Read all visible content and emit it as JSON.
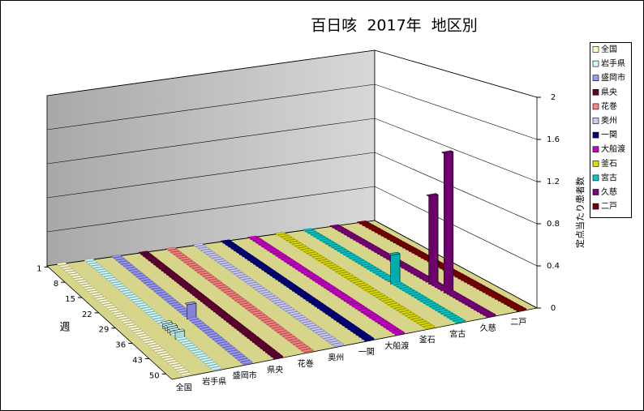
{
  "chart_data": {
    "type": "bar3d",
    "title": "百日咳  2017年  地区別",
    "xlabel": "週",
    "ylabel": "定点当たり患者数",
    "x": [
      1,
      2,
      3,
      4,
      5,
      6,
      7,
      8,
      9,
      10,
      11,
      12,
      13,
      14,
      15,
      16,
      17,
      18,
      19,
      20,
      21,
      22,
      23,
      24,
      25,
      26,
      27,
      28,
      29,
      30,
      31,
      32,
      33,
      34,
      35,
      36,
      37,
      38,
      39,
      40,
      41,
      42,
      43,
      44,
      45,
      46,
      47,
      48,
      49,
      50,
      51,
      52
    ],
    "xticks": [
      1,
      8,
      15,
      22,
      29,
      36,
      43,
      50
    ],
    "ylim": [
      0,
      2
    ],
    "yticks": [
      0,
      0.4,
      0.8,
      1.2,
      1.6,
      2
    ],
    "grid": true,
    "legend": "right",
    "series": [
      {
        "name": "全国",
        "color": "#FFFFCC",
        "values": [
          0,
          0,
          0,
          0,
          0,
          0,
          0,
          0,
          0,
          0,
          0,
          0,
          0,
          0,
          0,
          0,
          0,
          0,
          0,
          0,
          0,
          0,
          0,
          0,
          0,
          0,
          0,
          0,
          0,
          0,
          0,
          0,
          0,
          0,
          0,
          0,
          0,
          0,
          0,
          0,
          0,
          0,
          0,
          0,
          0,
          0,
          0,
          0,
          0,
          0,
          0,
          0
        ]
      },
      {
        "name": "岩手県",
        "color": "#CCFFFF",
        "values": [
          0,
          0,
          0,
          0,
          0,
          0,
          0,
          0,
          0,
          0,
          0,
          0,
          0,
          0,
          0,
          0,
          0,
          0,
          0,
          0,
          0,
          0,
          0,
          0,
          0,
          0,
          0,
          0,
          0,
          0,
          0,
          0.05,
          0.03,
          0.06,
          0.04,
          0,
          0.07,
          0,
          0,
          0,
          0,
          0,
          0,
          0,
          0,
          0,
          0,
          0,
          0,
          0,
          0,
          0
        ]
      },
      {
        "name": "盛岡市",
        "color": "#9999FF",
        "values": [
          0,
          0,
          0,
          0,
          0,
          0,
          0,
          0,
          0,
          0,
          0,
          0,
          0,
          0,
          0,
          0,
          0,
          0,
          0,
          0,
          0,
          0,
          0,
          0,
          0,
          0,
          0,
          0,
          0,
          0.15,
          0,
          0,
          0,
          0,
          0,
          0,
          0,
          0,
          0,
          0,
          0,
          0,
          0,
          0,
          0,
          0,
          0,
          0,
          0,
          0,
          0,
          0
        ]
      },
      {
        "name": "県央",
        "color": "#660033",
        "values": [
          0,
          0,
          0,
          0,
          0,
          0,
          0,
          0,
          0,
          0,
          0,
          0,
          0,
          0,
          0,
          0,
          0,
          0,
          0,
          0,
          0,
          0,
          0,
          0,
          0,
          0,
          0,
          0,
          0,
          0,
          0,
          0,
          0,
          0,
          0,
          0,
          0,
          0,
          0,
          0,
          0,
          0,
          0,
          0,
          0,
          0,
          0,
          0,
          0,
          0,
          0,
          0
        ]
      },
      {
        "name": "花巻",
        "color": "#FF8080",
        "values": [
          0,
          0,
          0,
          0,
          0,
          0,
          0,
          0,
          0,
          0,
          0,
          0,
          0,
          0,
          0,
          0,
          0,
          0,
          0,
          0,
          0,
          0,
          0,
          0,
          0,
          0,
          0,
          0,
          0,
          0,
          0,
          0,
          0,
          0,
          0,
          0,
          0,
          0,
          0,
          0,
          0,
          0,
          0,
          0,
          0,
          0,
          0,
          0,
          0,
          0,
          0,
          0
        ]
      },
      {
        "name": "奥州",
        "color": "#CCCCFF",
        "values": [
          0,
          0,
          0,
          0,
          0,
          0,
          0,
          0,
          0,
          0,
          0,
          0,
          0,
          0,
          0,
          0,
          0,
          0,
          0,
          0,
          0,
          0,
          0,
          0,
          0,
          0,
          0,
          0,
          0,
          0,
          0,
          0,
          0,
          0,
          0,
          0,
          0,
          0,
          0,
          0,
          0,
          0,
          0,
          0,
          0,
          0,
          0,
          0,
          0,
          0,
          0,
          0
        ]
      },
      {
        "name": "一関",
        "color": "#000080",
        "values": [
          0,
          0,
          0,
          0,
          0,
          0,
          0,
          0,
          0,
          0,
          0,
          0,
          0,
          0,
          0,
          0,
          0,
          0,
          0,
          0,
          0,
          0,
          0,
          0,
          0,
          0,
          0,
          0,
          0,
          0,
          0,
          0,
          0,
          0,
          0,
          0,
          0,
          0,
          0,
          0,
          0,
          0,
          0,
          0,
          0,
          0,
          0,
          0,
          0,
          0,
          0,
          0
        ]
      },
      {
        "name": "大船渡",
        "color": "#CC00CC",
        "values": [
          0,
          0,
          0,
          0,
          0,
          0,
          0,
          0,
          0,
          0,
          0,
          0,
          0,
          0,
          0,
          0,
          0,
          0,
          0,
          0,
          0,
          0,
          0,
          0,
          0,
          0,
          0,
          0,
          0,
          0,
          0,
          0,
          0,
          0,
          0,
          0,
          0,
          0,
          0,
          0,
          0,
          0,
          0,
          0,
          0,
          0,
          0,
          0,
          0,
          0,
          0,
          0
        ]
      },
      {
        "name": "釜石",
        "color": "#E0E000",
        "values": [
          0,
          0,
          0,
          0,
          0,
          0,
          0,
          0,
          0,
          0,
          0,
          0,
          0,
          0,
          0,
          0,
          0,
          0,
          0,
          0,
          0,
          0,
          0,
          0,
          0,
          0,
          0,
          0,
          0,
          0,
          0,
          0,
          0,
          0,
          0,
          0,
          0,
          0,
          0,
          0,
          0,
          0,
          0,
          0,
          0,
          0,
          0,
          0,
          0,
          0,
          0,
          0
        ]
      },
      {
        "name": "宮古",
        "color": "#00CCCC",
        "values": [
          0,
          0,
          0,
          0,
          0,
          0,
          0,
          0,
          0,
          0,
          0,
          0,
          0,
          0,
          0,
          0,
          0,
          0,
          0,
          0,
          0,
          0,
          0,
          0,
          0,
          0,
          0,
          0,
          0,
          0.3,
          0,
          0,
          0,
          0,
          0,
          0,
          0,
          0,
          0,
          0,
          0,
          0,
          0,
          0,
          0,
          0,
          0,
          0,
          0,
          0,
          0,
          0
        ]
      },
      {
        "name": "久慈",
        "color": "#800080",
        "values": [
          0,
          0,
          0,
          0,
          0,
          0,
          0,
          0,
          0,
          0,
          0,
          0,
          0,
          0,
          0,
          0,
          0,
          0,
          0,
          0,
          0,
          0,
          0,
          0,
          0,
          0,
          0,
          0,
          0,
          0,
          0,
          0,
          0.9,
          0,
          0,
          0,
          0,
          1.4,
          0,
          0,
          0,
          0,
          0,
          0,
          0,
          0,
          0,
          0,
          0,
          0,
          0,
          0
        ]
      },
      {
        "name": "二戸",
        "color": "#800000",
        "values": [
          0,
          0,
          0,
          0,
          0,
          0,
          0,
          0,
          0,
          0,
          0,
          0,
          0,
          0,
          0,
          0,
          0,
          0,
          0,
          0,
          0,
          0,
          0,
          0,
          0,
          0,
          0,
          0,
          0,
          0,
          0,
          0,
          0,
          0,
          0,
          0,
          0,
          0,
          0,
          0,
          0,
          0,
          0,
          0,
          0,
          0,
          0,
          0,
          0,
          0,
          0,
          0
        ]
      }
    ]
  }
}
